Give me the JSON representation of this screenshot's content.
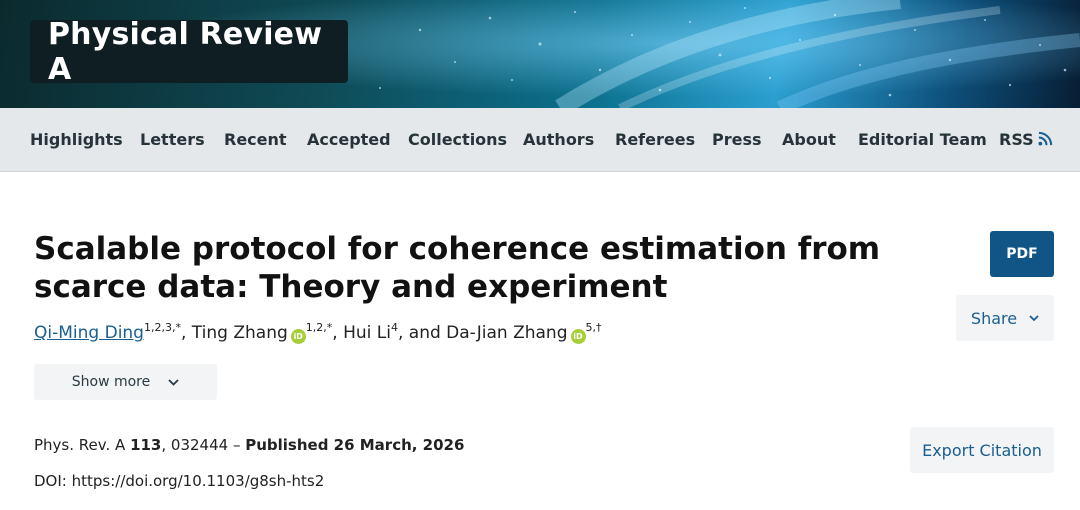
{
  "banner": {
    "journal_title": "Physical Review A"
  },
  "nav": {
    "items": [
      {
        "label": "Highlights"
      },
      {
        "label": "Letters"
      },
      {
        "label": "Recent"
      },
      {
        "label": "Accepted"
      },
      {
        "label": "Collections"
      },
      {
        "label": "Authors"
      },
      {
        "label": "Referees"
      },
      {
        "label": "Press"
      },
      {
        "label": "About"
      },
      {
        "label": "Editorial Team"
      },
      {
        "label": "RSS",
        "icon": "rss-icon"
      }
    ]
  },
  "article": {
    "title": "Scalable protocol for coherence estimation from scarce data: Theory and experiment",
    "authors": [
      {
        "name": "Qi-Ming Ding",
        "affil": "1,2,3,*",
        "link": true,
        "orcid": false
      },
      {
        "name": "Ting Zhang",
        "affil": "1,2,*",
        "link": false,
        "orcid": true
      },
      {
        "name": "Hui Li",
        "affil": "4",
        "link": false,
        "orcid": false
      },
      {
        "name": "Da-Jian Zhang",
        "affil": "5,†",
        "link": false,
        "orcid": true
      }
    ],
    "author_separators": [
      ", ",
      ", ",
      ", and "
    ],
    "show_more_label": "Show more",
    "citation": {
      "journal": "Phys. Rev. A",
      "volume": "113",
      "article_number": ", 032444 – ",
      "published": "Published 26 March, 2026"
    },
    "doi": "DOI: https://doi.org/10.1103/g8sh-hts2"
  },
  "actions": {
    "pdf_label": "PDF",
    "share_label": "Share",
    "export_label": "Export Citation"
  },
  "colors": {
    "primary_button": "#115486",
    "link": "#1a5f91",
    "orcid": "#a6ce39",
    "nav_bg": "#e4e8ea"
  }
}
